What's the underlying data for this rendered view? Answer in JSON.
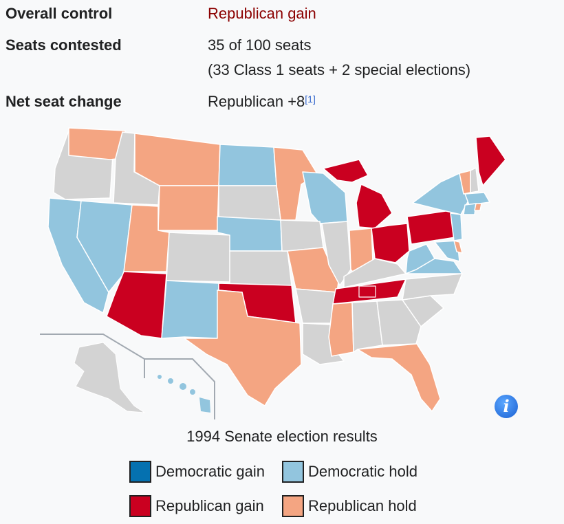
{
  "infobox": {
    "overall_control_label": "Overall control",
    "overall_control_value": "Republican gain",
    "seats_contested_label": "Seats contested",
    "seats_contested_value": "35 of 100 seats",
    "seats_contested_detail": "(33 Class 1 seats + 2 special elections)",
    "net_change_label": "Net seat change",
    "net_change_value": "Republican +8",
    "net_change_ref": "[1]"
  },
  "map": {
    "caption": "1994 Senate election results",
    "info_icon": "info-icon",
    "colors": {
      "dem_gain": "#0571b0",
      "dem_hold": "#92c5de",
      "rep_gain": "#ca0020",
      "rep_hold": "#f4a582",
      "no_race": "#d3d3d3"
    },
    "legend": [
      {
        "label": "Democratic gain",
        "color": "#0571b0"
      },
      {
        "label": "Democratic hold",
        "color": "#92c5de"
      },
      {
        "label": "Republican gain",
        "color": "#ca0020"
      },
      {
        "label": "Republican hold",
        "color": "#f4a582"
      }
    ]
  }
}
